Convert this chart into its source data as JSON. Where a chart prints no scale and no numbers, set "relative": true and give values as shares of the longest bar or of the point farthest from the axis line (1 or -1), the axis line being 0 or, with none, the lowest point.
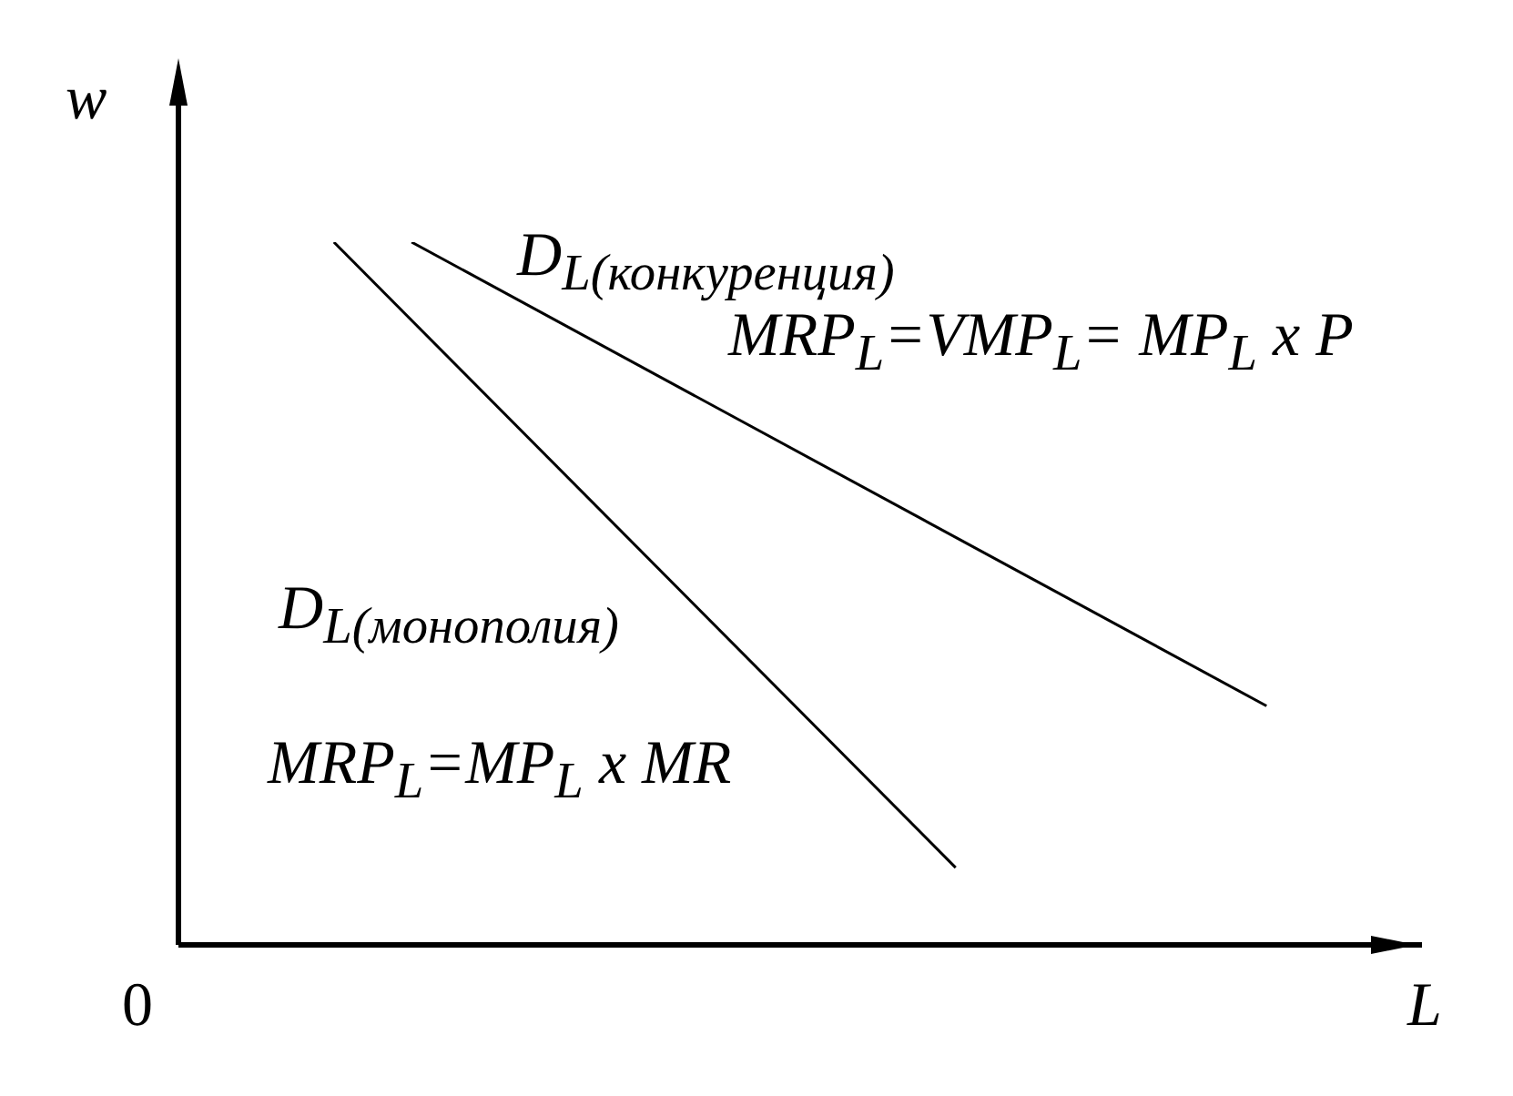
{
  "chart_data": {
    "type": "line",
    "relative": true,
    "xlabel": "L",
    "ylabel": "w",
    "categories": [
      null,
      null,
      null,
      null,
      null,
      null,
      null,
      null,
      null,
      null,
      null,
      null,
      null,
      null,
      null,
      null,
      null
    ],
    "series": [
      {
        "name": "D$_{L(монополия)}$",
        "color": "#000000",
        "values": [
          null,
          null,
          1,
          null,
          null,
          null,
          null,
          null,
          null,
          null,
          0.11,
          null,
          null,
          null,
          null,
          null,
          null
        ]
      },
      {
        "name": "D$_{L(конкуренция)}$",
        "color": "#000000",
        "values": [
          null,
          null,
          null,
          1,
          null,
          null,
          null,
          null,
          null,
          null,
          null,
          null,
          null,
          null,
          0.34,
          null,
          null
        ]
      }
    ],
    "annotations": [
      "0",
      "MRP$_{L}$=VMP$_{L}$= MP$_{L}$ x P",
      "MRP$_{L}$=MP$_{L}$ x MR"
    ],
    "marker": "none",
    "line_style": "solid",
    "grid": false
  }
}
